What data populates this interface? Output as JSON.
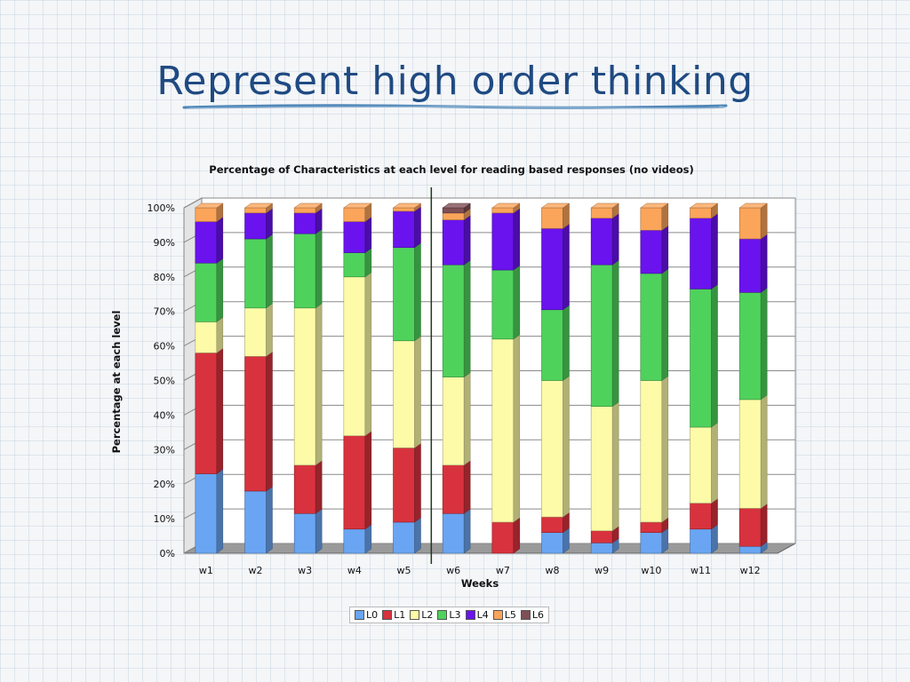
{
  "slide": {
    "title": "Represent high order thinking"
  },
  "colors": {
    "title": "#1f4a82",
    "series": [
      "#69a5f2",
      "#d8323e",
      "#fdfba7",
      "#4fd25c",
      "#6a13ee",
      "#fba55b",
      "#7f4f56"
    ]
  },
  "chart_data": {
    "type": "bar",
    "stacked": true,
    "title": "Percentage of Characteristics at each level for reading based responses (no videos)",
    "xlabel": "Weeks",
    "ylabel": "Percentage at each level",
    "ylim": [
      0,
      100
    ],
    "yticks": [
      "0%",
      "10%",
      "20%",
      "30%",
      "40%",
      "50%",
      "60%",
      "70%",
      "80%",
      "90%",
      "100%"
    ],
    "categories": [
      "w1",
      "w2",
      "w3",
      "w4",
      "w5",
      "w6",
      "w7",
      "w8",
      "w9",
      "w10",
      "w11",
      "w12"
    ],
    "divider_after_category": "w5",
    "series": [
      {
        "name": "L0",
        "values": [
          23,
          18,
          11.5,
          7,
          9,
          11.5,
          0,
          6,
          3,
          6,
          7,
          2
        ]
      },
      {
        "name": "L1",
        "values": [
          35,
          39,
          14,
          27,
          21.5,
          14,
          9,
          4.5,
          3.5,
          3,
          7.5,
          11
        ]
      },
      {
        "name": "L2",
        "values": [
          9,
          14,
          45.5,
          46,
          31,
          25.5,
          53,
          39.5,
          36,
          41,
          22,
          31.5
        ]
      },
      {
        "name": "L3",
        "values": [
          17,
          20,
          21.5,
          7,
          27,
          32.5,
          20,
          20.5,
          41,
          31,
          40,
          31
        ]
      },
      {
        "name": "L4",
        "values": [
          12,
          7.5,
          6,
          9,
          10.5,
          13,
          16.5,
          23.5,
          13.5,
          12.5,
          20.5,
          15.5
        ]
      },
      {
        "name": "L5",
        "values": [
          4,
          1.5,
          1.5,
          4,
          1,
          2,
          1.5,
          6,
          3,
          6.5,
          3,
          9
        ]
      },
      {
        "name": "L6",
        "values": [
          0,
          0,
          0,
          0,
          0,
          1.5,
          0,
          0,
          0,
          0,
          0,
          0
        ]
      }
    ],
    "legend": [
      "L0",
      "L1",
      "L2",
      "L3",
      "L4",
      "L5",
      "L6"
    ],
    "legend_position": "bottom-center",
    "grid": true
  }
}
